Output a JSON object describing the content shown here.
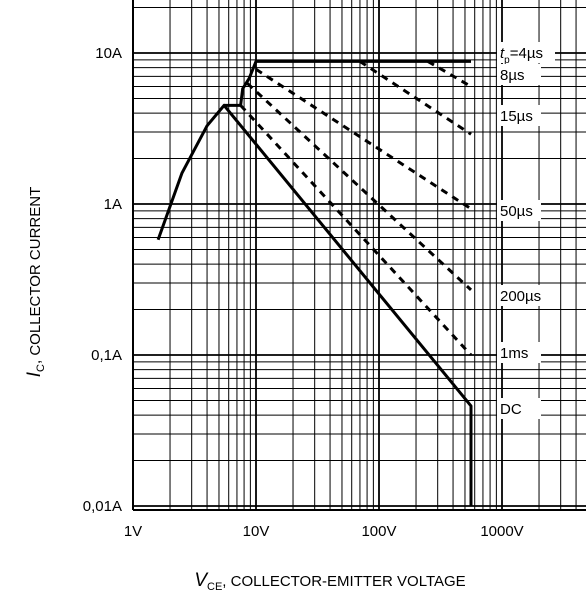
{
  "chart_data": {
    "type": "line",
    "title": "",
    "xlabel": {
      "symbol": "V",
      "subscript": "CE",
      "text": ", COLLECTOR-EMITTER VOLTAGE"
    },
    "ylabel": {
      "symbol": "I",
      "subscript": "C",
      "text": ", COLLECTOR CURRENT"
    },
    "x_scale": "log",
    "y_scale": "log",
    "xlim": [
      1,
      1000
    ],
    "ylim": [
      0.01,
      10
    ],
    "x_tick_labels": [
      "1V",
      "10V",
      "100V",
      "1000V"
    ],
    "y_tick_labels": [
      "0,01A",
      "0,1A",
      "1A",
      "10A"
    ],
    "grid": true,
    "series": [
      {
        "name": "DC",
        "line_style": "solid",
        "x": [
          1.6,
          2.5,
          4,
          5.5,
          560,
          560
        ],
        "y": [
          0.58,
          1.6,
          3.3,
          4.5,
          0.046,
          0.01
        ]
      },
      {
        "name": "1ms",
        "line_style": "dashed",
        "x": [
          7.5,
          560
        ],
        "y": [
          4.5,
          0.1
        ]
      },
      {
        "name": "200µs",
        "line_style": "dashed",
        "x": [
          8.5,
          560
        ],
        "y": [
          6.3,
          0.27
        ]
      },
      {
        "name": "50µs",
        "line_style": "dashed",
        "x": [
          10,
          560
        ],
        "y": [
          7.8,
          0.93
        ]
      },
      {
        "name": "15µs",
        "line_style": "dashed",
        "x": [
          70,
          560
        ],
        "y": [
          8.8,
          2.9
        ]
      },
      {
        "name": "8µs",
        "line_style": "dashed",
        "x": [
          250,
          560
        ],
        "y": [
          8.8,
          6.0
        ]
      },
      {
        "name": "tp=4µs",
        "line_style": "solid",
        "x": [
          5.5,
          7.5,
          7.8,
          8.8,
          10,
          560
        ],
        "y": [
          4.5,
          4.5,
          5.8,
          6.8,
          8.8,
          8.8
        ]
      }
    ],
    "curve_labels": [
      {
        "text": "=4µs",
        "symbol": "t",
        "subscript": "p"
      },
      {
        "text": "8µs"
      },
      {
        "text": "15µs"
      },
      {
        "text": "50µs"
      },
      {
        "text": "200µs"
      },
      {
        "text": "1ms"
      },
      {
        "text": "DC"
      }
    ]
  }
}
